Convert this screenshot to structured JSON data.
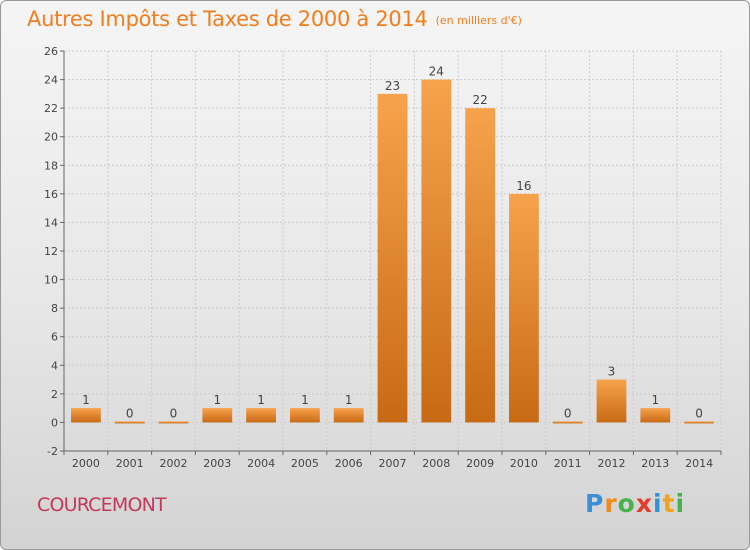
{
  "title": "Autres Impôts et Taxes de 2000 à 2014",
  "title_unit": "(en milliers d'€)",
  "town": "COURCEMONT",
  "logo": {
    "letters": [
      "P",
      "r",
      "o",
      "x",
      "i",
      "t",
      "i"
    ],
    "colors": [
      "#3b8fd6",
      "#f28a1b",
      "#49b14b",
      "#e53b2f",
      "#2f93d8",
      "#f2a21b",
      "#49b14b"
    ]
  },
  "chart_data": {
    "type": "bar",
    "title": "Autres Impôts et Taxes de 2000 à 2014",
    "subtitle": "(en milliers d'€)",
    "categories": [
      "2000",
      "2001",
      "2002",
      "2003",
      "2004",
      "2005",
      "2006",
      "2007",
      "2008",
      "2009",
      "2010",
      "2011",
      "2012",
      "2013",
      "2014"
    ],
    "values": [
      1,
      0,
      0,
      1,
      1,
      1,
      1,
      23,
      24,
      22,
      16,
      0,
      3,
      1,
      0
    ],
    "data_labels": [
      "1",
      "0",
      "0",
      "1",
      "1",
      "1",
      "1",
      "23",
      "24",
      "22",
      "16",
      "0",
      "3",
      "1",
      "0"
    ],
    "ylim": [
      -2,
      26
    ],
    "yticks": [
      -2,
      0,
      2,
      4,
      6,
      8,
      10,
      12,
      14,
      16,
      18,
      20,
      22,
      24,
      26
    ],
    "grid": true,
    "colors": {
      "bar_light": "#f7a24c",
      "bar_dark": "#c86a14",
      "grid": "#cccccc",
      "axis": "#666666",
      "text": "#444444"
    }
  }
}
